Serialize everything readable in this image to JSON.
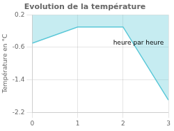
{
  "chart_data": {
    "type": "line",
    "title": "Evolution de la température",
    "y_label": "Température en °C",
    "annotations": [
      "heure par heure"
    ],
    "x": [
      0,
      1,
      2,
      3
    ],
    "values": [
      -0.5,
      -0.1,
      -0.1,
      -1.9
    ],
    "color": "#5bc8d8",
    "xlim": [
      0,
      3
    ],
    "xticks": [
      0,
      1,
      2,
      3
    ],
    "ylim": [
      -2.2,
      0.2
    ],
    "yticks": [
      0.2,
      -0.6,
      -1.4,
      -2.2
    ],
    "grid": true
  }
}
